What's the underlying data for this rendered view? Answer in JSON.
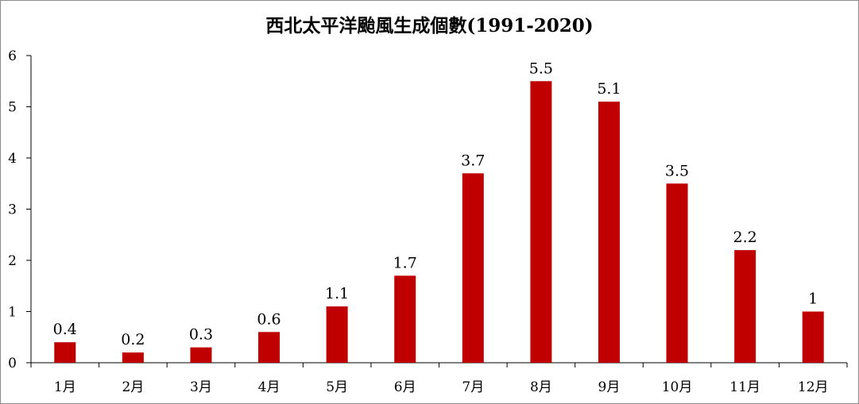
{
  "chart_data": {
    "type": "bar",
    "title": "西北太平洋颱風生成個數(1991-2020)",
    "xlabel": "",
    "ylabel": "",
    "ylim": [
      0,
      6
    ],
    "yticks": [
      "0",
      "1",
      "2",
      "3",
      "4",
      "5",
      "6"
    ],
    "categories": [
      "1月",
      "2月",
      "3月",
      "4月",
      "5月",
      "6月",
      "7月",
      "8月",
      "9月",
      "10月",
      "11月",
      "12月"
    ],
    "values": [
      0.4,
      0.2,
      0.3,
      0.6,
      1.1,
      1.7,
      3.7,
      5.5,
      5.1,
      3.5,
      2.2,
      1
    ],
    "data_labels": [
      "0.4",
      "0.2",
      "0.3",
      "0.6",
      "1.1",
      "1.7",
      "3.7",
      "5.5",
      "5.1",
      "3.5",
      "2.2",
      "1"
    ],
    "bar_color": "#c00000",
    "grid": false,
    "legend": "none"
  }
}
